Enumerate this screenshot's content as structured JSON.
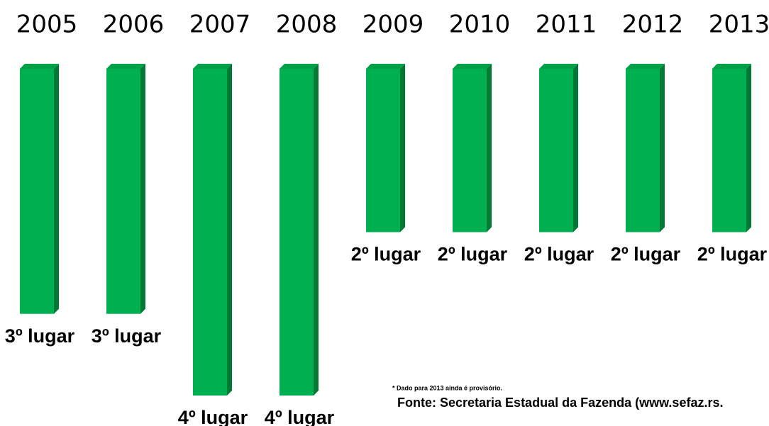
{
  "chart_data": {
    "type": "bar",
    "categories": [
      "2005",
      "2006",
      "2007",
      "2008",
      "2009",
      "2010",
      "2011",
      "2012",
      "2013"
    ],
    "values": [
      3,
      3,
      4,
      4,
      2,
      2,
      2,
      2,
      2
    ],
    "value_labels": [
      "3º lugar",
      "3º lugar",
      "4º lugar",
      "4º lugar",
      "2º lugar",
      "2º lugar",
      "2º lugar",
      "2º lugar",
      "2º lugar"
    ],
    "color": "#00b050",
    "ylim": [
      0,
      4
    ],
    "inverted": true,
    "annotations": [
      "* Dado para 2013 ainda é provisório.",
      "Fonte: Secretaria Estadual da Fazenda (www.sefaz.rs."
    ]
  }
}
